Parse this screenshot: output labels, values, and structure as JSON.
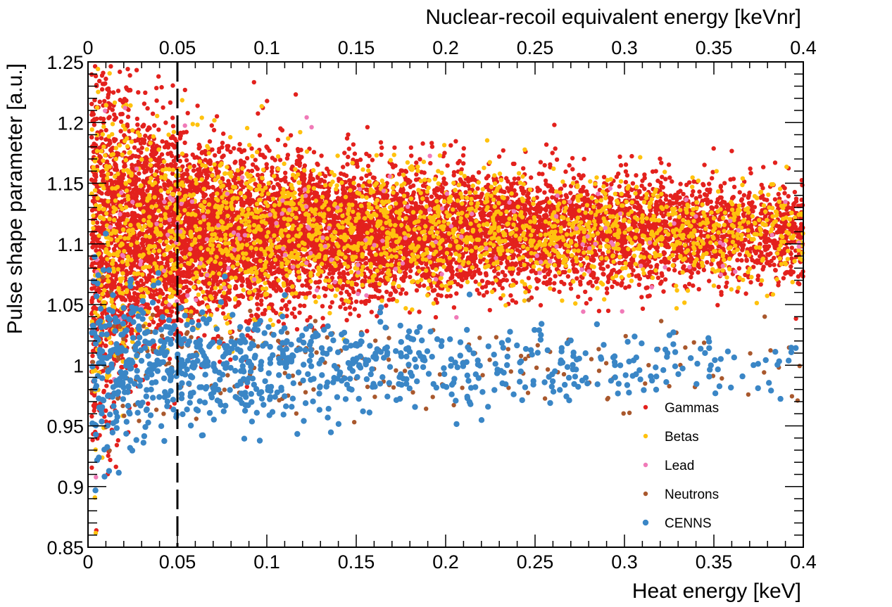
{
  "chart_data": {
    "type": "scatter",
    "title": "",
    "xlabel": "Heat energy [keV]",
    "x2label": "Nuclear-recoil equivalent energy [keVnr]",
    "ylabel": "Pulse shape parameter [a.u.]",
    "xlim": [
      0,
      0.4
    ],
    "x2lim": [
      0,
      0.4
    ],
    "ylim": [
      0.85,
      1.25
    ],
    "xticks": [
      "0",
      "0.05",
      "0.1",
      "0.15",
      "0.2",
      "0.25",
      "0.3",
      "0.35",
      "0.4"
    ],
    "x2ticks": [
      "0",
      "0.05",
      "0.1",
      "0.15",
      "0.2",
      "0.25",
      "0.3",
      "0.35",
      "0.4"
    ],
    "yticks": [
      "0.85",
      "0.9",
      "0.95",
      "1",
      "1.05",
      "1.1",
      "1.15",
      "1.2",
      "1.25"
    ],
    "threshold_line_x": 0.05,
    "grid": false,
    "legend_position": "bottom-right",
    "series": [
      {
        "name": "Gammas",
        "color": "#e3211d",
        "band_center": 1.11,
        "density": "very high"
      },
      {
        "name": "Betas",
        "color": "#ffc20e",
        "band_center": 1.11,
        "density": "high"
      },
      {
        "name": "Lead",
        "color": "#f07ab8",
        "band_center": 1.11,
        "density": "low"
      },
      {
        "name": "Neutrons",
        "color": "#a9582d",
        "band_center": 1.0,
        "density": "low"
      },
      {
        "name": "CENNS",
        "color": "#3a86c6",
        "band_center": 1.0,
        "density": "medium"
      }
    ]
  }
}
